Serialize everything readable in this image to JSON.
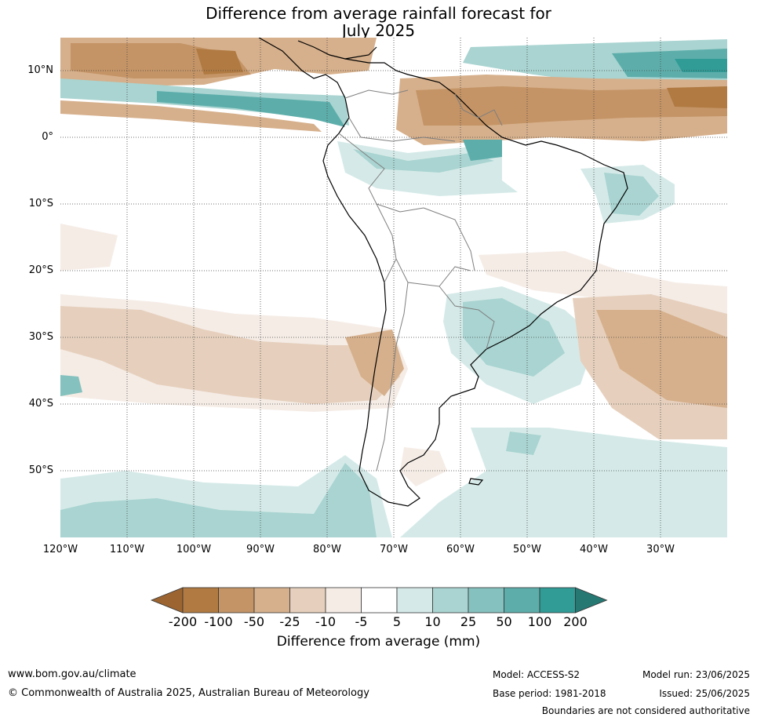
{
  "title_line1": "Difference from average rainfall forecast for",
  "title_line2": "July 2025",
  "lat_labels": [
    "10°N",
    "0°",
    "10°S",
    "20°S",
    "30°S",
    "40°S",
    "50°S"
  ],
  "lon_labels": [
    "120°W",
    "110°W",
    "100°W",
    "90°W",
    "80°W",
    "70°W",
    "60°W",
    "50°W",
    "40°W",
    "30°W"
  ],
  "legend": {
    "title": "Difference from average (mm)",
    "ticks": [
      "-200",
      "-100",
      "-50",
      "-25",
      "-10",
      "-5",
      "5",
      "10",
      "25",
      "50",
      "100",
      "200"
    ],
    "colors": [
      "#9c6431",
      "#b07a42",
      "#c49466",
      "#d6b08c",
      "#e6d0bd",
      "#f5ece6",
      "#ffffff",
      "#d5eae8",
      "#a9d4d1",
      "#85c1be",
      "#5daeab",
      "#319b96",
      "#267873"
    ]
  },
  "footer": {
    "website": "www.bom.gov.au/climate",
    "copyright": "© Commonwealth of Australia 2025, Australian Bureau of Meteorology",
    "model": "Model: ACCESS-S2",
    "base_period": "Base period: 1981-2018",
    "model_run": "Model run: 23/06/2025",
    "issued": "Issued: 25/06/2025",
    "disclaimer": "Boundaries are not considered authoritative"
  }
}
